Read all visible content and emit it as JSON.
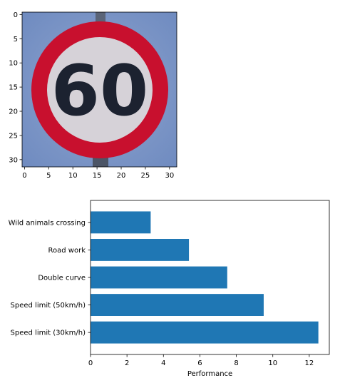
{
  "chart_data": [
    {
      "type": "image",
      "content": "speed-limit-60-sign",
      "xlim": [
        -0.5,
        31.5
      ],
      "ylim": [
        31.5,
        -0.5
      ],
      "xticks": [
        0,
        5,
        10,
        15,
        20,
        25,
        30
      ],
      "yticks": [
        0,
        5,
        10,
        15,
        20,
        25,
        30
      ],
      "sign_text": "60",
      "colors": {
        "ring": "#c8102e",
        "background": "#7e96c6",
        "inner": "#d6d2d8",
        "digits": "#1c2230"
      }
    },
    {
      "type": "bar",
      "orientation": "horizontal",
      "categories": [
        "Speed limit (30km/h)",
        "Speed limit (50km/h)",
        "Double curve",
        "Road work",
        "Wild animals crossing"
      ],
      "values": [
        12.5,
        9.5,
        7.5,
        5.4,
        3.3
      ],
      "xlabel": "Performance",
      "xlim": [
        0,
        13.1
      ],
      "xticks": [
        0,
        2,
        4,
        6,
        8,
        10,
        12
      ],
      "bar_color": "#1f77b4",
      "grid": false,
      "legend": "none"
    }
  ]
}
